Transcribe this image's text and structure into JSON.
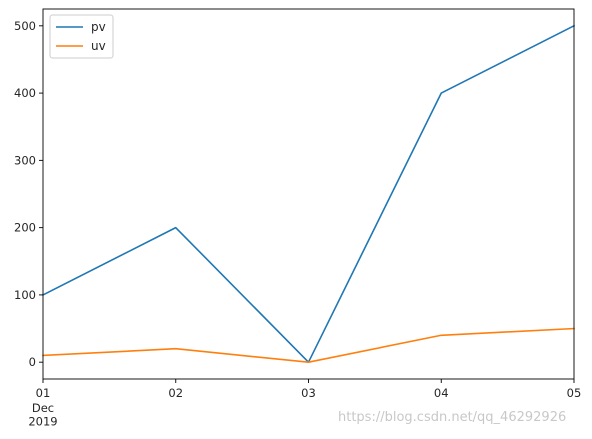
{
  "chart_data": {
    "type": "line",
    "x": [
      "01",
      "02",
      "03",
      "04",
      "05"
    ],
    "x_secondary_labels": [
      "Dec",
      "2019"
    ],
    "series": [
      {
        "name": "pv",
        "values": [
          100,
          200,
          0,
          400,
          500
        ],
        "color": "#1f77b4"
      },
      {
        "name": "uv",
        "values": [
          10,
          20,
          0,
          40,
          50
        ],
        "color": "#ff7f0e"
      }
    ],
    "yticks": [
      0,
      100,
      200,
      300,
      400,
      500
    ],
    "ylim": [
      -25,
      525
    ],
    "grid": false,
    "legend": "top-left"
  },
  "watermark": "https://blog.csdn.net/qq_46292926"
}
